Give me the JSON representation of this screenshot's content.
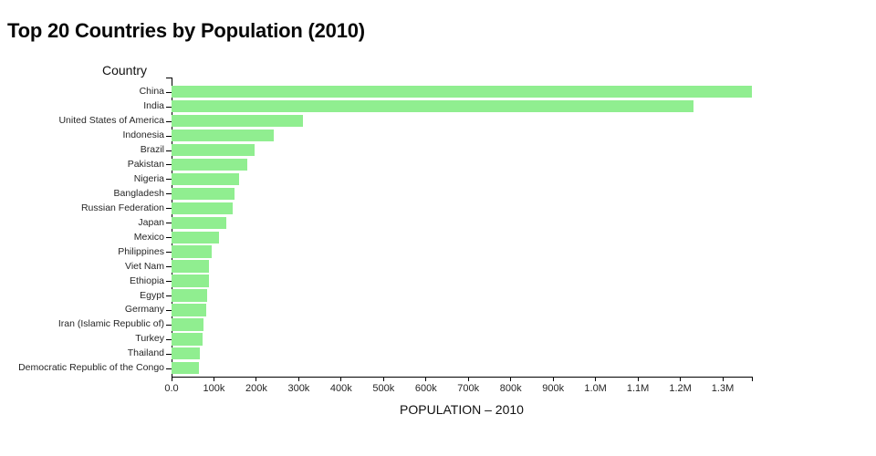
{
  "chart_data": {
    "type": "bar",
    "orientation": "horizontal",
    "title": "Top 20 Countries by Population (2010)",
    "xlabel": "POPULATION – 2010",
    "ylabel": "Country",
    "categories": [
      "China",
      "India",
      "United States of America",
      "Indonesia",
      "Brazil",
      "Pakistan",
      "Nigeria",
      "Bangladesh",
      "Russian Federation",
      "Japan",
      "Mexico",
      "Philippines",
      "Viet Nam",
      "Ethiopia",
      "Egypt",
      "Germany",
      "Iran (Islamic Republic of)",
      "Turkey",
      "Thailand",
      "Democratic Republic of the Congo"
    ],
    "values": [
      1368811,
      1230985,
      309011,
      241834,
      195714,
      179425,
      158503,
      148692,
      143479,
      128542,
      112532,
      93967,
      87968,
      87640,
      82761,
      80827,
      74572,
      72326,
      66692,
      64564
    ],
    "xlim": [
      0,
      1368811
    ],
    "x_ticks": [
      {
        "v": 0,
        "label": "0.0"
      },
      {
        "v": 100000,
        "label": "100k"
      },
      {
        "v": 200000,
        "label": "200k"
      },
      {
        "v": 300000,
        "label": "300k"
      },
      {
        "v": 400000,
        "label": "400k"
      },
      {
        "v": 500000,
        "label": "500k"
      },
      {
        "v": 600000,
        "label": "600k"
      },
      {
        "v": 700000,
        "label": "700k"
      },
      {
        "v": 800000,
        "label": "800k"
      },
      {
        "v": 900000,
        "label": "900k"
      },
      {
        "v": 1000000,
        "label": "1.0M"
      },
      {
        "v": 1100000,
        "label": "1.1M"
      },
      {
        "v": 1200000,
        "label": "1.2M"
      },
      {
        "v": 1300000,
        "label": "1.3M"
      }
    ],
    "bar_color": "#90ee90",
    "axis_color": "#000000",
    "label_color": "#262626",
    "grid": false,
    "legend": false
  }
}
